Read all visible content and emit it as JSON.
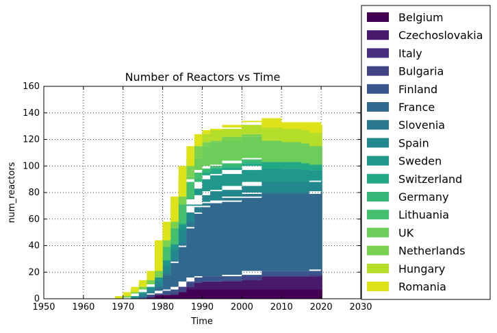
{
  "chart_data": {
    "type": "area",
    "title": "Number of Reactors vs Time",
    "xlabel": "Time",
    "ylabel": "num_reactors",
    "xlim": [
      1950,
      2030
    ],
    "ylim": [
      0,
      160
    ],
    "xticks": [
      "1950",
      "1960",
      "1970",
      "1980",
      "1990",
      "2000",
      "2010",
      "2020",
      "2030"
    ],
    "yticks": [
      "0",
      "20",
      "40",
      "60",
      "80",
      "100",
      "120",
      "140",
      "160"
    ],
    "grid": true,
    "legend_position": "right, outside plot",
    "x": [
      1968,
      1970,
      1972,
      1974,
      1976,
      1978,
      1980,
      1982,
      1984,
      1986,
      1988,
      1990,
      1992,
      1995,
      2000,
      2005,
      2010,
      2015,
      2017,
      2020
    ],
    "series": [
      {
        "name": "Belgium",
        "color": "#440154",
        "values": [
          0,
          0,
          0,
          0,
          1,
          3,
          3,
          3,
          5,
          7,
          7,
          7,
          7,
          7,
          7,
          7,
          7,
          7,
          7,
          7
        ]
      },
      {
        "name": "Czechoslovakia",
        "color": "#481a6c",
        "values": [
          0,
          0,
          0,
          0,
          0,
          0,
          0,
          0,
          0,
          2,
          5,
          6,
          6,
          6,
          7,
          10,
          10,
          10,
          10,
          11
        ]
      },
      {
        "name": "Italy",
        "color": "#472f7d",
        "values": [
          0,
          0,
          0,
          0,
          0,
          0,
          0,
          0,
          0,
          0,
          0,
          0,
          0,
          0,
          0,
          0,
          0,
          0,
          0,
          0
        ]
      },
      {
        "name": "Bulgaria",
        "color": "#414487",
        "values": [
          0,
          0,
          0,
          0,
          0,
          0,
          0,
          0,
          0,
          0,
          0,
          0,
          0,
          0,
          0,
          0,
          0,
          0,
          0,
          0
        ]
      },
      {
        "name": "Finland",
        "color": "#39568c",
        "values": [
          0,
          0,
          0,
          0,
          1,
          1,
          3,
          4,
          4,
          4,
          4,
          4,
          4,
          4,
          4,
          4,
          4,
          4,
          4,
          4
        ]
      },
      {
        "name": "France",
        "color": "#31688e",
        "values": [
          0,
          0,
          0,
          1,
          2,
          4,
          12,
          20,
          30,
          40,
          48,
          52,
          55,
          56,
          58,
          58,
          58,
          58,
          58,
          58
        ]
      },
      {
        "name": "Slovenia",
        "color": "#2a788e",
        "values": [
          0,
          0,
          0,
          0,
          0,
          0,
          0,
          1,
          1,
          1,
          1,
          1,
          1,
          1,
          1,
          1,
          1,
          1,
          1,
          1
        ]
      },
      {
        "name": "Spain",
        "color": "#23888e",
        "values": [
          0,
          0,
          0,
          1,
          1,
          1,
          1,
          1,
          2,
          4,
          6,
          8,
          8,
          8,
          8,
          8,
          8,
          8,
          8,
          8
        ]
      },
      {
        "name": "Sweden",
        "color": "#1f988b",
        "values": [
          0,
          0,
          1,
          2,
          3,
          4,
          6,
          8,
          10,
          12,
          12,
          12,
          12,
          12,
          12,
          12,
          10,
          10,
          9,
          8
        ]
      },
      {
        "name": "Switzerland",
        "color": "#22a884",
        "values": [
          0,
          1,
          3,
          3,
          3,
          3,
          4,
          4,
          4,
          5,
          5,
          5,
          5,
          5,
          5,
          5,
          5,
          5,
          5,
          4
        ]
      },
      {
        "name": "Germany",
        "color": "#35b779",
        "values": [
          0,
          0,
          0,
          0,
          0,
          0,
          0,
          0,
          0,
          0,
          0,
          0,
          0,
          0,
          0,
          0,
          0,
          0,
          0,
          0
        ]
      },
      {
        "name": "Lithuania",
        "color": "#44bf70",
        "values": [
          0,
          0,
          0,
          0,
          0,
          0,
          0,
          0,
          1,
          1,
          2,
          2,
          2,
          2,
          2,
          1,
          0,
          0,
          0,
          0
        ]
      },
      {
        "name": "UK",
        "color": "#6ccd5a",
        "values": [
          0,
          0,
          0,
          0,
          0,
          0,
          10,
          12,
          14,
          16,
          16,
          18,
          18,
          18,
          18,
          18,
          16,
          15,
          15,
          14
        ]
      },
      {
        "name": "Netherlands",
        "color": "#7ad151",
        "values": [
          0,
          0,
          0,
          0,
          0,
          0,
          0,
          0,
          0,
          0,
          0,
          0,
          0,
          0,
          0,
          0,
          0,
          0,
          0,
          0
        ]
      },
      {
        "name": "Hungary",
        "color": "#b5de2b",
        "values": [
          0,
          1,
          1,
          2,
          3,
          5,
          5,
          5,
          6,
          8,
          9,
          9,
          9,
          9,
          9,
          10,
          10,
          10,
          10,
          10
        ]
      },
      {
        "name": "Romania",
        "color": "#dde318",
        "values": [
          0,
          0,
          0,
          0,
          0,
          0,
          0,
          0,
          0,
          0,
          0,
          0,
          0,
          1,
          2,
          2,
          4,
          5,
          6,
          6
        ]
      }
    ]
  }
}
